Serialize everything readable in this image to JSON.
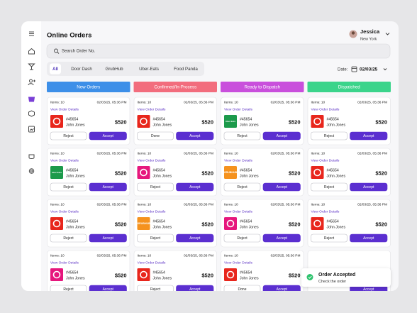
{
  "header": {
    "title": "Online Orders",
    "user": {
      "name": "Jessica",
      "location": "New York"
    }
  },
  "search": {
    "placeholder": "Search Order No."
  },
  "tabs": [
    "All",
    "Door Dash",
    "GrubHub",
    "Uber-Eats",
    "Food Panda"
  ],
  "date": {
    "label": "Date:",
    "value": "02/03/25"
  },
  "columns": [
    {
      "title": "New Orders",
      "color": "#3d8fe8",
      "cards": [
        {
          "items": "Items: 10",
          "time": "02/03/25, 05:36 PM",
          "link": "View Order Details",
          "order": "#45654",
          "name": "John Jones",
          "price": "$520",
          "logo": {
            "color": "#e8261c"
          },
          "buttons": [
            "Reject",
            "Accept"
          ]
        },
        {
          "items": "Items: 10",
          "time": "02/03/25, 05:36 PM",
          "link": "View Order Details",
          "order": "#45654",
          "name": "John Jones",
          "price": "$520",
          "logo": {
            "color": "#1c9a4b",
            "text": "Uber Eats"
          },
          "buttons": [
            "Reject",
            "Accept"
          ]
        },
        {
          "items": "Items: 10",
          "time": "02/03/25, 05:36 PM",
          "link": "View Order Details",
          "order": "#45654",
          "name": "John Jones",
          "price": "$520",
          "logo": {
            "color": "#e8261c"
          },
          "buttons": [
            "Reject",
            "Accept"
          ]
        },
        {
          "items": "Items: 10",
          "time": "02/03/25, 05:36 PM",
          "link": "View Order Details",
          "order": "#45654",
          "name": "John Jones",
          "price": "$520",
          "logo": {
            "color": "#e6177d"
          },
          "buttons": [
            "Reject",
            "Accept"
          ]
        }
      ]
    },
    {
      "title": "Confirmed/In-Process",
      "color": "#f26d7d",
      "cards": [
        {
          "items": "Items: 10",
          "time": "02/03/25, 05:36 PM",
          "link": "View Order Details",
          "order": "#45654",
          "name": "John Jones",
          "price": "$520",
          "logo": {
            "color": "#e8261c"
          },
          "buttons": [
            "Done",
            "Accept"
          ]
        },
        {
          "items": "Items: 10",
          "time": "02/03/25, 05:36 PM",
          "link": "View Order Details",
          "order": "#45654",
          "name": "John Jones",
          "price": "$520",
          "logo": {
            "color": "#e6177d"
          },
          "buttons": [
            "Reject",
            "Accept"
          ]
        },
        {
          "items": "Items: 10",
          "time": "02/03/25, 05:36 PM",
          "link": "View Order Details",
          "order": "#45654",
          "name": "John Jones",
          "price": "$520",
          "logo": {
            "color": "#f5921e",
            "text": "GRUBHUB"
          },
          "buttons": [
            "Reject",
            "Accept"
          ]
        },
        {
          "items": "Items: 10",
          "time": "02/03/25, 05:36 PM",
          "link": "View Order Details",
          "order": "#45654",
          "name": "John Jones",
          "price": "$520",
          "logo": {
            "color": "#e8261c"
          },
          "buttons": [
            "Reject",
            "Accept"
          ]
        }
      ]
    },
    {
      "title": "Ready to Dispatch",
      "color": "#c94fdc",
      "cards": [
        {
          "items": "Items: 10",
          "time": "02/03/25, 05:36 PM",
          "link": "View Order Details",
          "order": "#45654",
          "name": "John Jones",
          "price": "$520",
          "logo": {
            "color": "#1c9a4b",
            "text": "Uber Eats"
          },
          "buttons": [
            "Reject",
            "Accept"
          ]
        },
        {
          "items": "Items: 10",
          "time": "02/03/25, 05:36 PM",
          "link": "View Order Details",
          "order": "#45654",
          "name": "John Jones",
          "price": "$520",
          "logo": {
            "color": "#f5921e",
            "text": "GRUBHUB"
          },
          "buttons": [
            "Reject",
            "Accept"
          ]
        },
        {
          "items": "Items: 10",
          "time": "02/03/25, 05:36 PM",
          "link": "View Order Details",
          "order": "#45654",
          "name": "John Jones",
          "price": "$520",
          "logo": {
            "color": "#e6177d"
          },
          "buttons": [
            "Reject",
            "Accept"
          ]
        },
        {
          "items": "Items: 10",
          "time": "02/03/25, 05:36 PM",
          "link": "View Order Details",
          "order": "#45654",
          "name": "John Jones",
          "price": "$520",
          "logo": {
            "color": "#e8261c"
          },
          "buttons": [
            "Done",
            "Accept"
          ]
        }
      ]
    },
    {
      "title": "Dispatched",
      "color": "#3bd48b",
      "cards": [
        {
          "items": "Items: 10",
          "time": "02/03/25, 05:36 PM",
          "link": "View Order Details",
          "order": "#45654",
          "name": "John Jones",
          "price": "$520",
          "logo": {
            "color": "#e8261c"
          },
          "buttons": [
            "Reject",
            "Accept"
          ]
        },
        {
          "items": "Items: 10",
          "time": "02/03/25, 05:36 PM",
          "link": "View Order Details",
          "order": "#45654",
          "name": "John Jones",
          "price": "$520",
          "logo": {
            "color": "#e8261c"
          },
          "buttons": [
            "Reject",
            "Accept"
          ]
        },
        {
          "items": "Items: 10",
          "time": "02/03/25, 05:36 PM",
          "link": "View Order Details",
          "order": "#45654",
          "name": "John Jones",
          "price": "$520",
          "logo": {
            "color": "#e8261c"
          },
          "buttons": [
            "Reject",
            "Accept"
          ]
        },
        {
          "buttons": [
            "Accept"
          ]
        }
      ]
    }
  ],
  "toast": {
    "title": "Order Accepted",
    "message": "Check the order"
  }
}
